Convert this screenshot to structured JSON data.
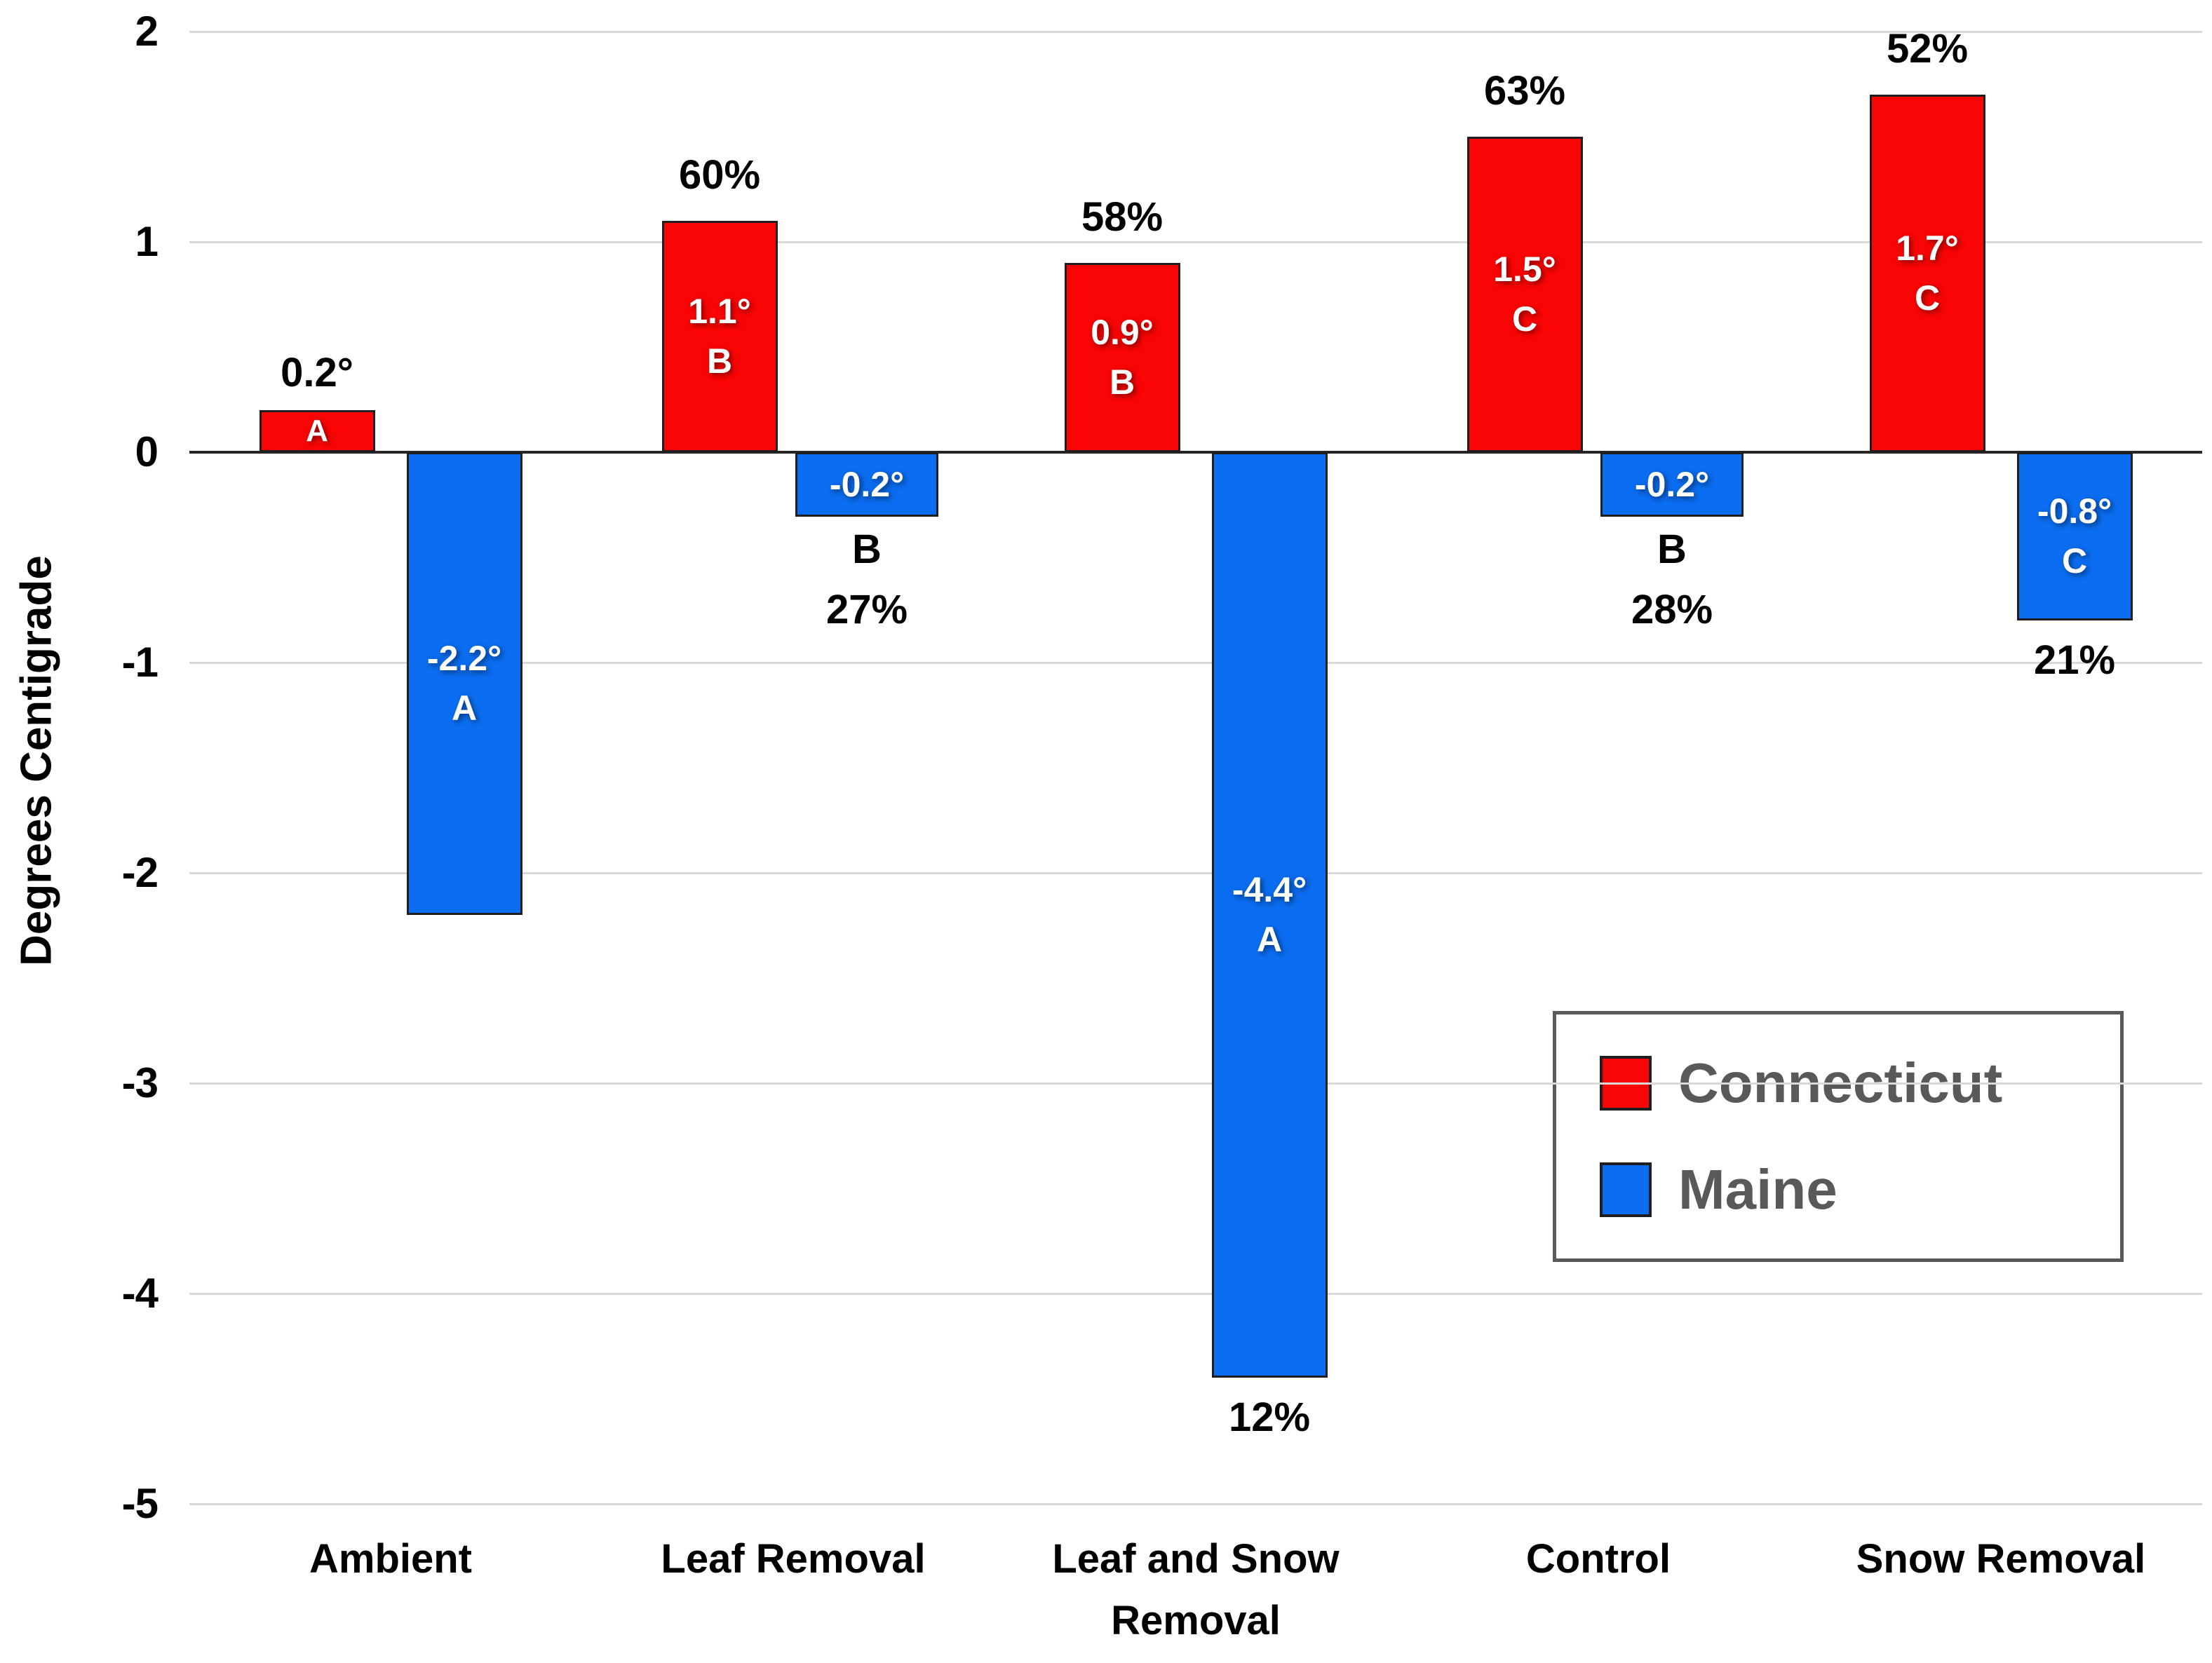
{
  "figure": {
    "background": "#FFFFFF"
  },
  "chart_data": {
    "type": "bar",
    "title": "",
    "xlabel": "",
    "ylabel": "Degrees Centigrade",
    "ylim": [
      -5,
      2
    ],
    "ytick_values": [
      2,
      1,
      0,
      -1,
      -2,
      -3,
      -4,
      -5
    ],
    "ytick_labels": [
      "2",
      "1",
      "0",
      "-1",
      "-2",
      "-3",
      "-4",
      "-5"
    ],
    "grid": "horizontal",
    "categories": [
      "Ambient",
      "Leaf Removal",
      "Leaf and Snow Removal",
      "Control",
      "Snow Removal"
    ],
    "legend": {
      "position": "inside-right",
      "entries": [
        {
          "name": "Connecticut",
          "color": "#FA0505"
        },
        {
          "name": "Maine",
          "color": "#0B6DF1"
        }
      ]
    },
    "series": [
      {
        "name": "Connecticut",
        "color": "#FA0505",
        "bars": [
          {
            "category": "Ambient",
            "value": 0.2,
            "value_label": "0.2°",
            "letter": "A",
            "pct": null
          },
          {
            "category": "Leaf Removal",
            "value": 1.1,
            "value_label": "1.1°",
            "letter": "B",
            "pct": "60%"
          },
          {
            "category": "Leaf and Snow Removal",
            "value": 0.9,
            "value_label": "0.9°",
            "letter": "B",
            "pct": "58%"
          },
          {
            "category": "Control",
            "value": 1.5,
            "value_label": "1.5°",
            "letter": "C",
            "pct": "63%"
          },
          {
            "category": "Snow Removal",
            "value": 1.7,
            "value_label": "1.7°",
            "letter": "C",
            "pct": "52%"
          }
        ]
      },
      {
        "name": "Maine",
        "color": "#0B6DF1",
        "bars": [
          {
            "category": "Ambient",
            "value": -2.2,
            "value_label": "-2.2°",
            "letter": "A",
            "pct": null
          },
          {
            "category": "Leaf Removal",
            "value": -0.2,
            "value_label": "-0.2°",
            "letter": "B",
            "pct": "27%"
          },
          {
            "category": "Leaf and Snow Removal",
            "value": -4.4,
            "value_label": "-4.4°",
            "letter": "A",
            "pct": "12%"
          },
          {
            "category": "Control",
            "value": -0.2,
            "value_label": "-0.2°",
            "letter": "B",
            "pct": "28%"
          },
          {
            "category": "Snow Removal",
            "value": -0.8,
            "value_label": "-0.8°",
            "letter": "C",
            "pct": "21%"
          }
        ]
      }
    ],
    "colors": {
      "grid": "#D9D9D9",
      "zero_line": "#262626",
      "bar_border": "#1F1F1F",
      "label_inside": "#FFFFFF",
      "label_outside": "#000000",
      "legend_text": "#595959",
      "legend_border": "#595959"
    }
  }
}
